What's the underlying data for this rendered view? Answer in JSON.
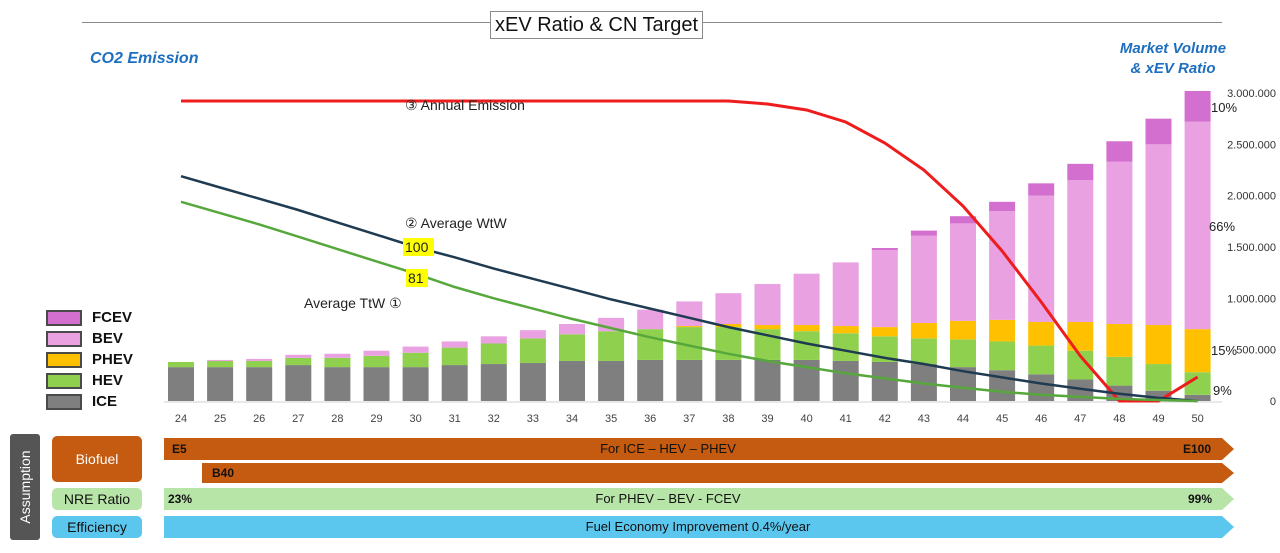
{
  "title": "xEV Ratio & CN Target",
  "left_axis_label": "CO2 Emission",
  "right_axis_label_line1": "Market Volume",
  "right_axis_label_line2": "& xEV Ratio",
  "colors": {
    "FCEV": "#d36fce",
    "BEV": "#e9a1e1",
    "PHEV": "#ffc000",
    "HEV": "#8fd14f",
    "ICE": "#7f7f7f",
    "annual_emission": "#ee1c1c",
    "average_wtw": "#1f3b52",
    "average_ttw": "#57a83c",
    "biofuel": "#c55a11",
    "nre": "#b7e4a7",
    "efficiency": "#5bc6ee"
  },
  "legend": [
    {
      "key": "FCEV",
      "label": "FCEV"
    },
    {
      "key": "BEV",
      "label": "BEV"
    },
    {
      "key": "PHEV",
      "label": "PHEV"
    },
    {
      "key": "HEV",
      "label": "HEV"
    },
    {
      "key": "ICE",
      "label": "ICE"
    }
  ],
  "chart_data": {
    "type": "bar",
    "stacked": true,
    "categories": [
      "24",
      "25",
      "26",
      "27",
      "28",
      "29",
      "30",
      "31",
      "32",
      "33",
      "34",
      "35",
      "36",
      "37",
      "38",
      "39",
      "40",
      "41",
      "42",
      "43",
      "44",
      "45",
      "46",
      "47",
      "48",
      "49",
      "50"
    ],
    "y_right_ticks": [
      "3.000.000",
      "2.500.000",
      "2.000.000",
      "1.500.000",
      "1.000.000",
      "500.000",
      "0"
    ],
    "ylim": [
      0,
      3000000
    ],
    "series": [
      {
        "name": "ICE",
        "values": [
          330000,
          330000,
          330000,
          350000,
          330000,
          330000,
          330000,
          350000,
          360000,
          370000,
          390000,
          390000,
          400000,
          400000,
          400000,
          400000,
          400000,
          390000,
          380000,
          360000,
          330000,
          300000,
          260000,
          210000,
          150000,
          100000,
          60000
        ]
      },
      {
        "name": "HEV",
        "values": [
          50000,
          60000,
          60000,
          70000,
          90000,
          110000,
          140000,
          170000,
          200000,
          240000,
          260000,
          290000,
          300000,
          320000,
          320000,
          300000,
          280000,
          270000,
          250000,
          250000,
          270000,
          280000,
          280000,
          280000,
          280000,
          260000,
          220000
        ]
      },
      {
        "name": "PHEV",
        "values": [
          0,
          0,
          0,
          0,
          0,
          0,
          0,
          0,
          0,
          0,
          0,
          0,
          0,
          10000,
          30000,
          40000,
          60000,
          70000,
          90000,
          150000,
          180000,
          210000,
          230000,
          280000,
          320000,
          380000,
          420000
        ]
      },
      {
        "name": "BEV",
        "values": [
          0,
          10000,
          20000,
          30000,
          40000,
          50000,
          60000,
          60000,
          70000,
          80000,
          100000,
          130000,
          190000,
          240000,
          300000,
          400000,
          500000,
          620000,
          750000,
          850000,
          950000,
          1060000,
          1230000,
          1380000,
          1580000,
          1760000,
          2020000
        ]
      },
      {
        "name": "FCEV",
        "values": [
          0,
          0,
          0,
          0,
          0,
          0,
          0,
          0,
          0,
          0,
          0,
          0,
          0,
          0,
          0,
          0,
          0,
          0,
          20000,
          50000,
          70000,
          90000,
          120000,
          160000,
          200000,
          250000,
          300000
        ]
      }
    ],
    "ratio_labels": [
      "10%",
      "66%",
      "15%",
      "9%"
    ],
    "lines": [
      {
        "name": "Annual Emission",
        "marker": "③",
        "values": [
          100,
          100,
          100,
          100,
          100,
          100,
          100,
          100,
          100,
          100,
          100,
          100,
          100,
          100,
          100,
          99,
          97,
          93,
          86,
          77,
          65,
          50,
          33,
          15,
          0,
          0,
          0
        ]
      },
      {
        "name": "Average WtW",
        "marker": "②",
        "values": [
          2190000,
          2080000,
          1970000,
          1860000,
          1740000,
          1620000,
          1500000,
          1400000,
          1290000,
          1190000,
          1090000,
          990000,
          900000,
          810000,
          720000,
          640000,
          560000,
          490000,
          420000,
          360000,
          290000,
          230000,
          170000,
          120000,
          70000,
          30000,
          0
        ]
      },
      {
        "name": "Average TtW",
        "marker": "①",
        "values": [
          1940000,
          1830000,
          1720000,
          1600000,
          1480000,
          1360000,
          1240000,
          1110000,
          1000000,
          900000,
          800000,
          710000,
          620000,
          540000,
          460000,
          390000,
          330000,
          270000,
          220000,
          170000,
          130000,
          90000,
          60000,
          40000,
          20000,
          10000,
          0
        ]
      }
    ],
    "emission_curve_note": "values in relative units",
    "point_labels": [
      {
        "text": "100"
      },
      {
        "text": "81"
      }
    ]
  },
  "assumption": {
    "label": "Assumption",
    "biofuel": {
      "tag": "Biofuel",
      "arrow1_left": "E5",
      "arrow1_center": "For ICE – HEV – PHEV",
      "arrow1_right": "E100",
      "arrow2_left": "B40"
    },
    "nre": {
      "tag": "NRE Ratio",
      "left": "23%",
      "center": "For PHEV – BEV - FCEV",
      "right": "99%"
    },
    "efficiency": {
      "tag": "Efficiency",
      "center": "Fuel Economy Improvement 0.4%/year"
    }
  }
}
